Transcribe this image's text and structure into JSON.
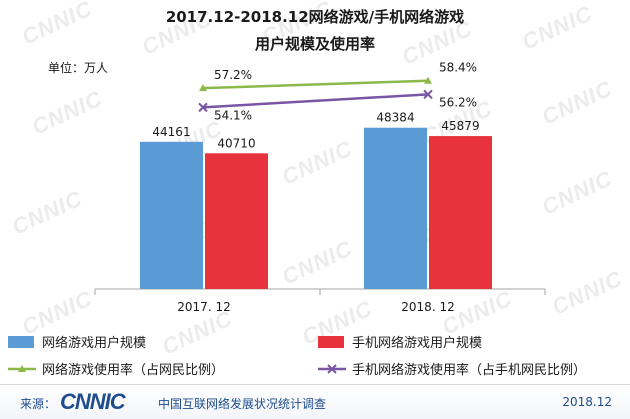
{
  "watermark": "CNNIC",
  "chart_data": {
    "type": "bar",
    "title_line1": "2017.12-2018.12网络游戏/手机网络游戏",
    "title_line2": "用户规模及使用率",
    "unit": "单位：万人",
    "categories": [
      "2017. 12",
      "2018. 12"
    ],
    "bar_series": [
      {
        "name": "网络游戏用户规模",
        "values": [
          44161,
          48384
        ],
        "color": "#5b9bd5"
      },
      {
        "name": "手机网络游戏用户规模",
        "values": [
          40710,
          45879
        ],
        "color": "#e8323c"
      }
    ],
    "line_series": [
      {
        "name": "网络游戏使用率（占网民比例）",
        "values": [
          "57.2%",
          "58.4%"
        ],
        "color": "#8cb84a",
        "marker": "triangle"
      },
      {
        "name": "手机网络游戏使用率（占手机网民比例）",
        "values": [
          "54.1%",
          "56.2%"
        ],
        "color": "#7a55a5",
        "marker": "x"
      }
    ],
    "grid": false
  },
  "footer": {
    "source_label": "来源：",
    "logo": "CNNIC",
    "org": "中国互联网络发展状况统计调查",
    "date": "2018.12"
  }
}
